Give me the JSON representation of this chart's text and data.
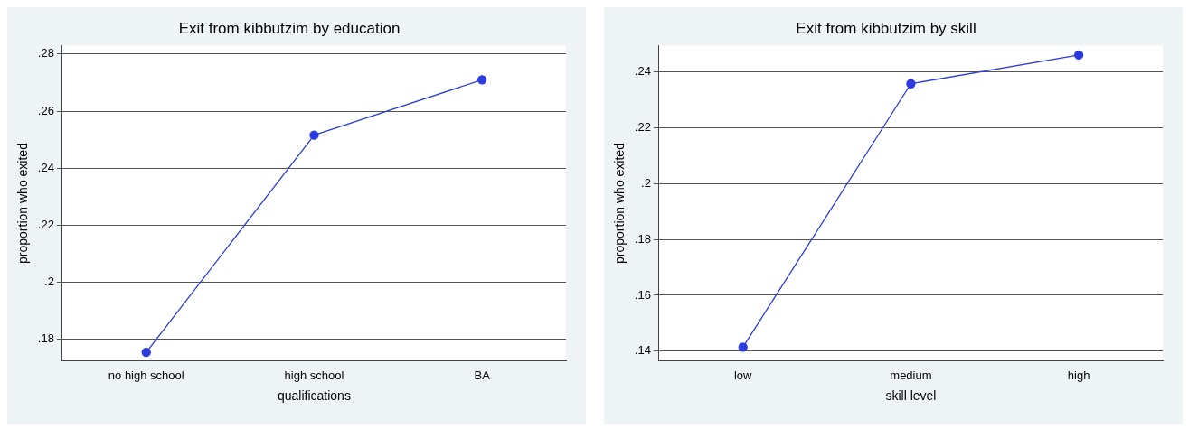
{
  "chart_data": [
    {
      "type": "line",
      "title": "Exit from kibbutzim by education",
      "xlabel": "qualifications",
      "ylabel": "proportion who exited",
      "categories": [
        "no high school",
        "high school",
        "BA"
      ],
      "series": [
        {
          "color": "#2b3be0",
          "values": [
            0.1755,
            0.2516,
            0.271
          ]
        }
      ],
      "ylim": [
        0.1725,
        0.283
      ],
      "yticks": [
        {
          "value": 0.18,
          "label": ".18"
        },
        {
          "value": 0.2,
          "label": ".2"
        },
        {
          "value": 0.22,
          "label": ".22"
        },
        {
          "value": 0.24,
          "label": ".24"
        },
        {
          "value": 0.26,
          "label": ".26"
        },
        {
          "value": 0.28,
          "label": ".28"
        }
      ],
      "grid": "y",
      "marker": "circle",
      "legend": false
    },
    {
      "type": "line",
      "title": "Exit from kibbutzim by skill",
      "xlabel": "skill level",
      "ylabel": "proportion who exited",
      "categories": [
        "low",
        "medium",
        "high"
      ],
      "series": [
        {
          "color": "#2b3be0",
          "values": [
            0.1414,
            0.2358,
            0.2461
          ]
        }
      ],
      "ylim": [
        0.1365,
        0.2495
      ],
      "yticks": [
        {
          "value": 0.14,
          "label": ".14"
        },
        {
          "value": 0.16,
          "label": ".16"
        },
        {
          "value": 0.18,
          "label": ".18"
        },
        {
          "value": 0.2,
          "label": ".2"
        },
        {
          "value": 0.22,
          "label": ".22"
        },
        {
          "value": 0.24,
          "label": ".24"
        }
      ],
      "grid": "y",
      "marker": "circle",
      "legend": false
    }
  ]
}
